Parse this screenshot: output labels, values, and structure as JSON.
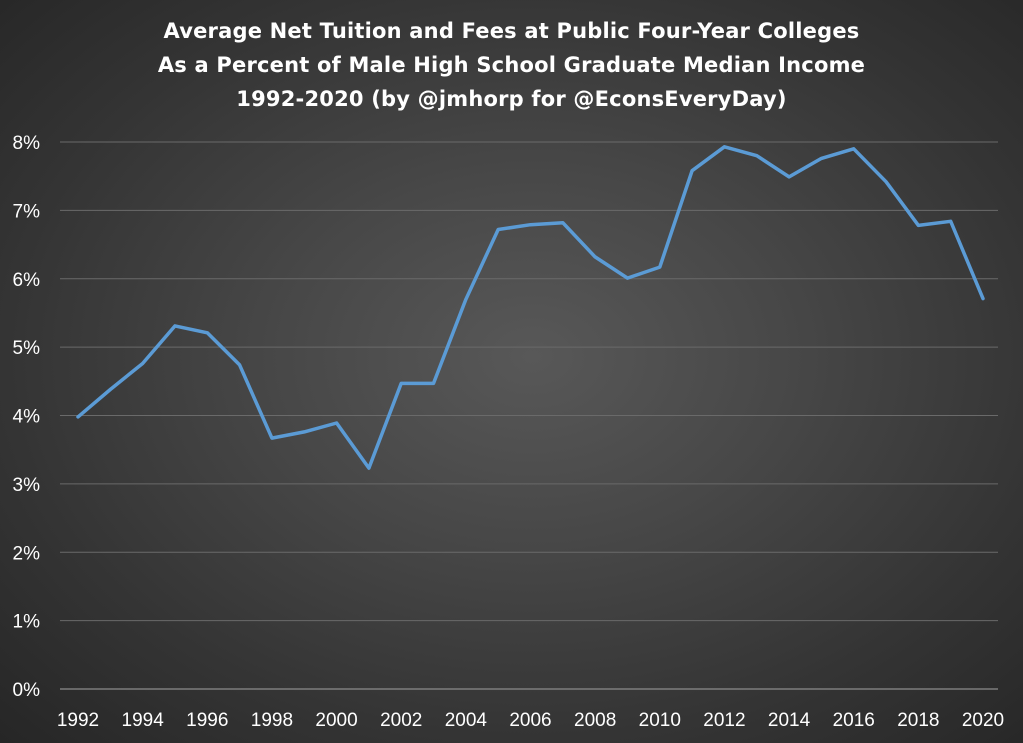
{
  "chart_data": {
    "type": "line",
    "title_lines": [
      "Average Net Tuition and Fees at Public Four-Year Colleges",
      "As a Percent of Male High School Graduate Median Income",
      "1992-2020 (by @jmhorp for @EconsEveryDay)"
    ],
    "xlabel": "",
    "ylabel": "",
    "x": [
      1992,
      1993,
      1994,
      1995,
      1996,
      1997,
      1998,
      1999,
      2000,
      2001,
      2002,
      2003,
      2004,
      2005,
      2006,
      2007,
      2008,
      2009,
      2010,
      2011,
      2012,
      2013,
      2014,
      2015,
      2016,
      2017,
      2018,
      2019,
      2020
    ],
    "x_tick_labels": [
      "1992",
      "1994",
      "1996",
      "1998",
      "2000",
      "2002",
      "2004",
      "2006",
      "2008",
      "2010",
      "2012",
      "2014",
      "2016",
      "2018",
      "2020"
    ],
    "y_ticks": [
      0,
      1,
      2,
      3,
      4,
      5,
      6,
      7,
      8
    ],
    "y_tick_labels": [
      "0%",
      "1%",
      "2%",
      "3%",
      "4%",
      "5%",
      "6%",
      "7%",
      "8%"
    ],
    "ylim": [
      0,
      8
    ],
    "grid": true,
    "legend": "none",
    "series": [
      {
        "color": "#5b9bd5",
        "values": [
          3.98,
          4.38,
          4.76,
          5.31,
          5.21,
          4.74,
          3.67,
          3.76,
          3.89,
          3.23,
          4.47,
          4.47,
          5.7,
          6.72,
          6.79,
          6.82,
          6.32,
          6.01,
          6.17,
          7.58,
          7.93,
          7.8,
          7.49,
          7.76,
          7.9,
          7.42,
          6.78,
          6.84,
          5.71
        ]
      }
    ]
  }
}
